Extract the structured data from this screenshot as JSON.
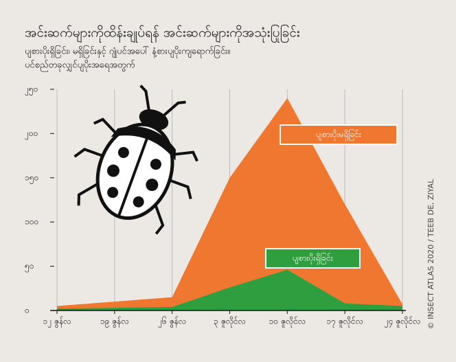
{
  "chart_data": {
    "type": "area",
    "title": "အင်းဆက်များကိုထိန်းချုပ်ရန် အင်းဆက်များကိုအသုံးပြုခြင်း",
    "subtitle": [
      "ပျစားပိုးရှိခြင်း၊ မရှိခြင်းနှင့် ဂျုံပင်အပေါ် နံ့စားပျပိုးကျရောက်ခြင်း။",
      "ပင်စည်တခုလျှင်ပျပိုးအရေအတွက်"
    ],
    "categories": [
      "၁၂ ဇွန်လ",
      "၁၉ ဇွန်လ",
      "၂၆ ဇွန်လ",
      "၃ ဇူလိုင်လ",
      "၁၀ ဇူလိုင်လ",
      "၁၇ ဇူလိုင်လ",
      "၂၄ ဇူလိုင်လ"
    ],
    "series": [
      {
        "name": "ပျစားပိုးမရှိခြင်း",
        "color": "#f07730",
        "values": [
          5,
          10,
          15,
          150,
          240,
          120,
          7
        ]
      },
      {
        "name": "ပျစားပိုးရှိခြင်း",
        "color": "#2e9e3e",
        "values": [
          2,
          3,
          4,
          26,
          46,
          8,
          5
        ]
      }
    ],
    "ylim": [
      0,
      250
    ],
    "yticks": [
      {
        "value": 0,
        "label": "၀"
      },
      {
        "value": 50,
        "label": "၅၀"
      },
      {
        "value": 100,
        "label": "၁၀၀"
      },
      {
        "value": 150,
        "label": "၁၅၀"
      },
      {
        "value": 200,
        "label": "၂၀၀"
      },
      {
        "value": 250,
        "label": "၂၅၀"
      }
    ],
    "grid": true,
    "credit": "© INSECT ATLAS 2020 / TEEB DE, ZIYAL"
  }
}
